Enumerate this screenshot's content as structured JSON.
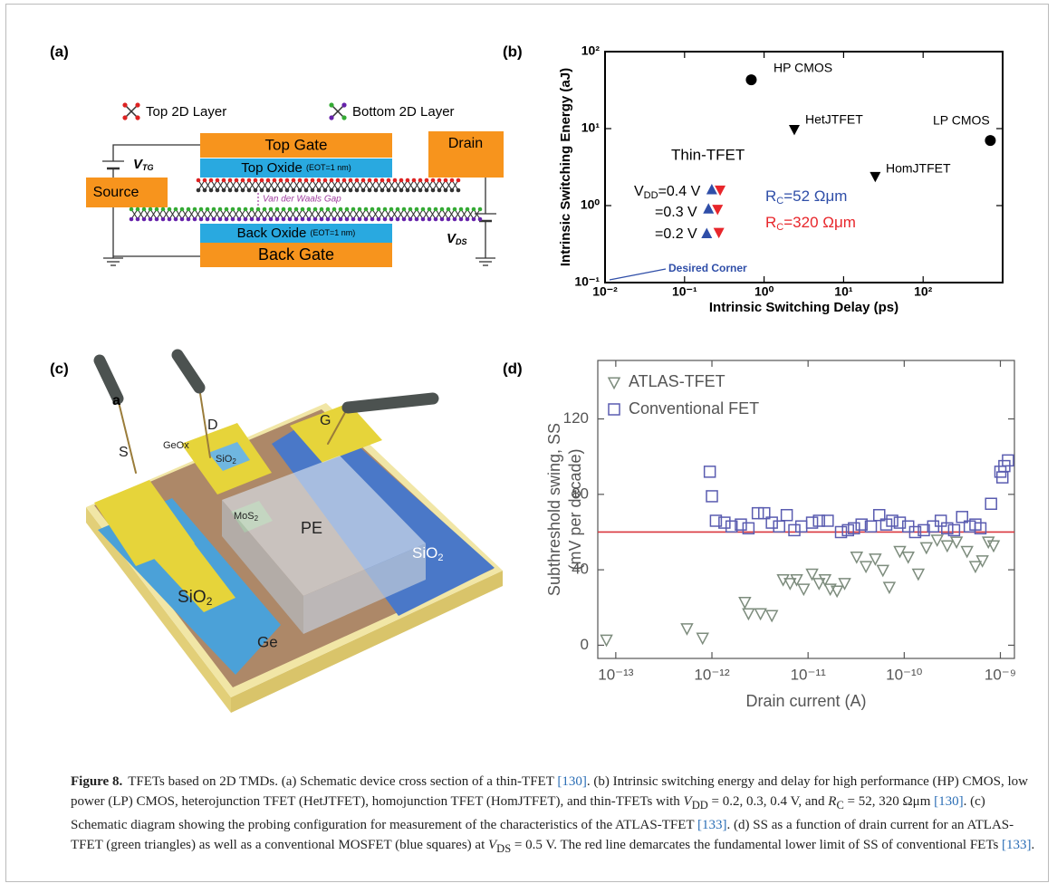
{
  "panel_labels": [
    "(a)",
    "(b)",
    "(c)",
    "(d)"
  ],
  "diagram_a": {
    "legend": [
      "Top 2D Layer",
      "Bottom 2D Layer"
    ],
    "top_gate": "Top Gate",
    "top_oxide": "Top Oxide",
    "top_oxide_note": "(EOT=1 nm)",
    "source": "Source",
    "drain": "Drain",
    "gap": "Van der Waals Gap",
    "back_oxide": "Back Oxide",
    "back_oxide_note": "(EOT=1 nm)",
    "back_gate": "Back Gate",
    "v_tg": [
      "V",
      "TG"
    ],
    "v_ds": [
      "V",
      "DS"
    ]
  },
  "illustration_c": {
    "tag": "a",
    "s": "S",
    "geox": "GeOx",
    "d": "D",
    "sio2_d": [
      "SiO",
      "2"
    ],
    "g": "G",
    "mos2": [
      "MoS",
      "2"
    ],
    "pe": "PE",
    "sio2_right": [
      "SiO",
      "2"
    ],
    "sio2_left": [
      "SiO",
      "2"
    ],
    "ge": "Ge"
  },
  "chart_data": [
    {
      "type": "scatter",
      "xlabel": "Intrinsic Switching Delay (ps)",
      "ylabel": "Intrinsic Switching Energy (aJ)",
      "xscale": "log",
      "yscale": "log",
      "xlim": [
        0.01,
        1000
      ],
      "ylim": [
        0.1,
        100
      ],
      "xticks": [
        {
          "value": 0.01,
          "label": "10⁻²"
        },
        {
          "value": 0.1,
          "label": "10⁻¹"
        },
        {
          "value": 1,
          "label": "10⁰"
        },
        {
          "value": 10,
          "label": "10¹"
        },
        {
          "value": 100,
          "label": "10²"
        }
      ],
      "yticks": [
        {
          "value": 0.1,
          "label": "10⁻¹"
        },
        {
          "value": 1,
          "label": "10⁰"
        },
        {
          "value": 10,
          "label": "10¹"
        },
        {
          "value": 100,
          "label": "10²"
        }
      ],
      "series": [
        {
          "marker": "circle",
          "color": "#000000",
          "x": [
            0.69,
            700
          ],
          "values": [
            43,
            7
          ],
          "labels": [
            "HP CMOS",
            "LP CMOS"
          ]
        },
        {
          "marker": "triangle-down",
          "color": "#000000",
          "x": [
            2.4,
            25
          ],
          "values": [
            9.8,
            2.4
          ],
          "labels": [
            "HetJTFET",
            "HomJTFET"
          ]
        },
        {
          "marker": "triangle-up",
          "color": "#2f4ea8",
          "x": [
            0.22,
            0.2,
            0.19
          ],
          "values": [
            1.6,
            0.9,
            0.43
          ]
        },
        {
          "marker": "triangle-down",
          "color": "#e8262b",
          "x": [
            0.28,
            0.26,
            0.27
          ],
          "values": [
            1.6,
            0.9,
            0.45
          ]
        }
      ],
      "annotations": {
        "thin_tfet": "Thin-TFET",
        "vdd": [
          "V",
          "DD",
          "=0.4 V"
        ],
        "vdd_03": "=0.3 V",
        "vdd_02": "=0.2 V",
        "rc_52": [
          "R",
          "C",
          "=52 Ωμm"
        ],
        "rc_320": [
          "R",
          "C",
          "=320 Ωμm"
        ],
        "desired_corner": "Desired Corner"
      }
    },
    {
      "type": "scatter",
      "xlabel": "Drain current (A)",
      "ylabel": [
        "Subthreshold swing, SS",
        "(mV per decade)"
      ],
      "xscale": "log",
      "xlim": [
        6.5e-14,
        1.4e-09
      ],
      "ylim": [
        -7,
        151
      ],
      "xticks": [
        {
          "value": 1e-13,
          "label": "10⁻¹³"
        },
        {
          "value": 1e-12,
          "label": "10⁻¹²"
        },
        {
          "value": 1e-11,
          "label": "10⁻¹¹"
        },
        {
          "value": 1e-10,
          "label": "10⁻¹⁰"
        },
        {
          "value": 1e-09,
          "label": "10⁻⁹"
        }
      ],
      "yticks": [
        0,
        40,
        80,
        120
      ],
      "legend": "upper left",
      "reference_line": {
        "y": 60,
        "color": "#d9363e"
      },
      "series": [
        {
          "name": "ATLAS-TFET",
          "marker": "triangle-down",
          "filled": false,
          "color": "#7d8c7d",
          "x": [
            8e-14,
            5.5e-13,
            8e-13,
            2.2e-12,
            2.4e-12,
            3.2e-12,
            4.2e-12,
            5.5e-12,
            6.5e-12,
            7.6e-12,
            9e-12,
            1.1e-11,
            1.3e-11,
            1.5e-11,
            1.7e-11,
            2e-11,
            2.4e-11,
            3.2e-11,
            4e-11,
            5e-11,
            6e-11,
            7e-11,
            9e-11,
            1.1e-10,
            1.4e-10,
            1.7e-10,
            2.2e-10,
            2.8e-10,
            3.5e-10,
            4.5e-10,
            5.5e-10,
            6.5e-10,
            7.5e-10,
            8.5e-10
          ],
          "values": [
            3,
            9,
            4,
            23,
            17,
            17,
            16,
            35,
            33,
            35,
            30,
            38,
            33,
            35,
            30,
            29,
            33,
            47,
            42,
            46,
            40,
            31,
            50,
            47,
            38,
            52,
            56,
            53,
            55,
            50,
            42,
            45,
            55,
            53
          ]
        },
        {
          "name": "Conventional FET",
          "marker": "square",
          "filled": false,
          "color": "#5a5cb0",
          "x": [
            9.5e-13,
            1e-12,
            1.1e-12,
            1.35e-12,
            1.6e-12,
            2e-12,
            2.4e-12,
            3e-12,
            3.5e-12,
            4.2e-12,
            5e-12,
            6e-12,
            7.2e-12,
            8.5e-12,
            1.1e-11,
            1.3e-11,
            1.6e-11,
            2.2e-11,
            2.6e-11,
            3e-11,
            3.6e-11,
            4.5e-11,
            5.5e-11,
            6.5e-11,
            7.5e-11,
            9e-11,
            1.1e-10,
            1.3e-10,
            1.6e-10,
            2e-10,
            2.4e-10,
            2.8e-10,
            3.3e-10,
            4e-10,
            4.8e-10,
            5.5e-10,
            6.2e-10,
            8e-10,
            1e-09,
            1.05e-09,
            1.1e-09,
            1.2e-09
          ],
          "values": [
            92,
            79,
            66,
            65,
            63,
            64,
            62,
            70,
            70,
            65,
            63,
            69,
            61,
            63,
            65,
            66,
            66,
            60,
            61,
            62,
            64,
            63,
            69,
            64,
            66,
            65,
            63,
            60,
            61,
            63,
            66,
            62,
            61,
            68,
            63,
            64,
            62,
            75,
            92,
            89,
            95,
            98
          ]
        }
      ]
    }
  ],
  "caption": {
    "label": "Figure 8.",
    "parts": [
      "TFETs based on 2D TMDs. (a) Schematic device cross section of a thin-TFET ",
      "[130]",
      ". (b) Intrinsic switching energy and delay for high performance (HP) CMOS, low power (LP) CMOS, heterojunction TFET (HetJTFET), homojunction TFET (HomJTFET), and thin-TFETs with ",
      "V",
      "DD",
      " = 0.2, 0.3, 0.4 V, and ",
      "R",
      "C",
      " = 52, 320 Ωμm ",
      "[130]",
      ". (c) Schematic diagram showing the probing configuration for measurement of the characteristics of the ATLAS-TFET ",
      "[133]",
      ". (d) SS as a function of drain current for an ATLAS-TFET (green triangles) as well as a conventional MOSFET (blue squares) at ",
      "V",
      "DS",
      " = 0.5 V. The red line demarcates the fundamental lower limit of SS of conventional FETs ",
      "[133]",
      "."
    ]
  }
}
